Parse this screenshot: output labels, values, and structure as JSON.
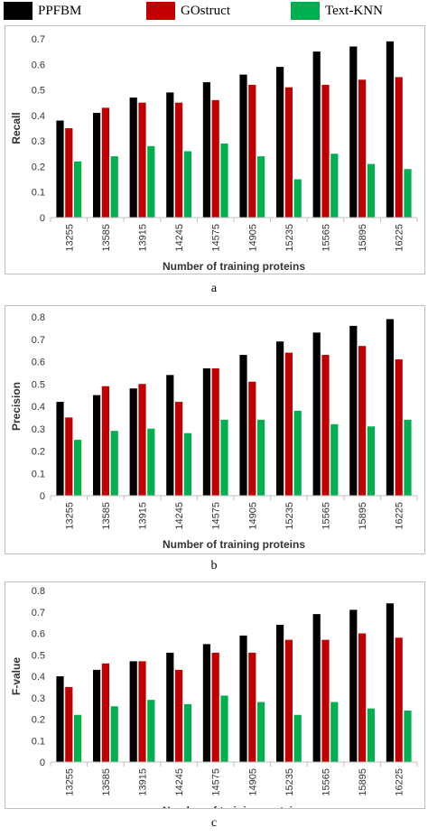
{
  "legend": [
    {
      "name": "PPFBM",
      "color": "#000000"
    },
    {
      "name": "GOstruct",
      "color": "#c00000"
    },
    {
      "name": "Text-KNN",
      "color": "#00b050"
    }
  ],
  "categories": [
    "13255",
    "13585",
    "13915",
    "14245",
    "14575",
    "14905",
    "15235",
    "15565",
    "15895",
    "16225"
  ],
  "chart_data": [
    {
      "type": "bar",
      "caption": "a",
      "xlabel": "Number of training proteins",
      "ylabel": "Recall",
      "ylim": [
        0,
        0.7
      ],
      "yticks": [
        "0",
        "0.1",
        "0.2",
        "0.3",
        "0.4",
        "0.5",
        "0.6",
        "0.7"
      ],
      "grid": false,
      "series": [
        {
          "name": "PPFBM",
          "color": "#000000",
          "values": [
            0.38,
            0.41,
            0.47,
            0.49,
            0.53,
            0.56,
            0.59,
            0.65,
            0.67,
            0.69
          ]
        },
        {
          "name": "GOstruct",
          "color": "#c00000",
          "values": [
            0.35,
            0.43,
            0.45,
            0.45,
            0.46,
            0.52,
            0.51,
            0.52,
            0.54,
            0.55
          ]
        },
        {
          "name": "Text-KNN",
          "color": "#00b050",
          "values": [
            0.22,
            0.24,
            0.28,
            0.26,
            0.29,
            0.24,
            0.15,
            0.25,
            0.21,
            0.19
          ]
        }
      ]
    },
    {
      "type": "bar",
      "caption": "b",
      "xlabel": "Number of training proteins",
      "ylabel": "Precision",
      "ylim": [
        0,
        0.8
      ],
      "yticks": [
        "0",
        "0.1",
        "0.2",
        "0.3",
        "0.4",
        "0.5",
        "0.6",
        "0.7",
        "0.8"
      ],
      "grid": false,
      "series": [
        {
          "name": "PPFBM",
          "color": "#000000",
          "values": [
            0.42,
            0.45,
            0.48,
            0.54,
            0.57,
            0.63,
            0.69,
            0.73,
            0.76,
            0.79
          ]
        },
        {
          "name": "GOstruct",
          "color": "#c00000",
          "values": [
            0.35,
            0.49,
            0.5,
            0.42,
            0.57,
            0.51,
            0.64,
            0.63,
            0.67,
            0.61
          ]
        },
        {
          "name": "Text-KNN",
          "color": "#00b050",
          "values": [
            0.25,
            0.29,
            0.3,
            0.28,
            0.34,
            0.34,
            0.38,
            0.32,
            0.31,
            0.34
          ]
        }
      ]
    },
    {
      "type": "bar",
      "caption": "c",
      "xlabel": "Number of training proteins",
      "ylabel": "F-value",
      "ylim": [
        0,
        0.8
      ],
      "yticks": [
        "0",
        "0.1",
        "0.2",
        "0.3",
        "0.4",
        "0.5",
        "0.6",
        "0.7",
        "0.8"
      ],
      "grid": false,
      "series": [
        {
          "name": "PPFBM",
          "color": "#000000",
          "values": [
            0.4,
            0.43,
            0.47,
            0.51,
            0.55,
            0.59,
            0.64,
            0.69,
            0.71,
            0.74
          ]
        },
        {
          "name": "GOstruct",
          "color": "#c00000",
          "values": [
            0.35,
            0.46,
            0.47,
            0.43,
            0.51,
            0.51,
            0.57,
            0.57,
            0.6,
            0.58
          ]
        },
        {
          "name": "Text-KNN",
          "color": "#00b050",
          "values": [
            0.22,
            0.26,
            0.29,
            0.27,
            0.31,
            0.28,
            0.22,
            0.28,
            0.25,
            0.24
          ]
        }
      ]
    }
  ]
}
